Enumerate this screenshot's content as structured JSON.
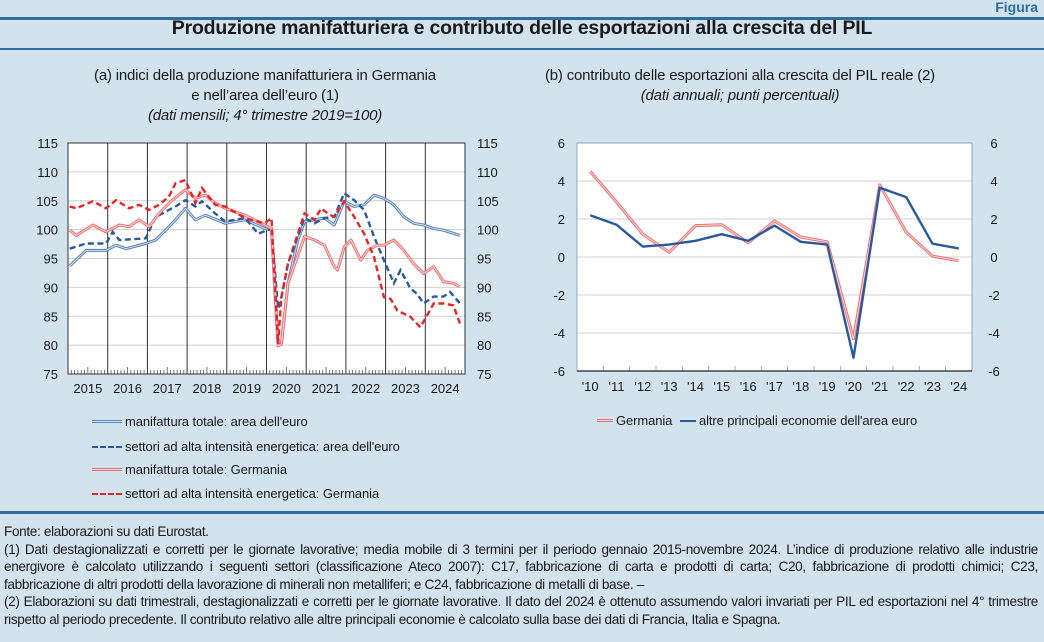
{
  "figure_label": "Figura",
  "title": "Produzione manifatturiera e contributo delle esportazioni alla crescita del PIL",
  "colors": {
    "background": "#d3e3ee",
    "rule": "#2f6e9c",
    "blue_light": "#5b86b8",
    "blue_dark": "#2a5a9c",
    "red_light": "#ef6f72",
    "red": "#e8242b"
  },
  "chart_data": [
    {
      "type": "line",
      "title": "(a) indici della produzione manifatturiera in Germania e nell’area dell’euro (1)",
      "title_line1": "(a) indici della produzione manifatturiera in Germania",
      "title_line2": "e nell’area dell’euro (1)",
      "subtitle": "(dati mensili; 4° trimestre 2019=100)",
      "ylim": [
        75,
        115
      ],
      "yticks": [
        "75",
        "80",
        "85",
        "90",
        "95",
        "100",
        "105",
        "110",
        "115"
      ],
      "xlabels": [
        "2015",
        "2016",
        "2017",
        "2018",
        "2019",
        "2020",
        "2021",
        "2022",
        "2023",
        "2024"
      ],
      "x_range": [
        "2015-01",
        "2024-12"
      ],
      "grid": true,
      "dual_y_axis": true,
      "legend_position": "bottom",
      "series": [
        {
          "name": "manifattura totale: area dell'euro",
          "style": "solid",
          "color": "#5b86b8",
          "points": [
            [
              "2015-01",
              93.7
            ],
            [
              "2015-06",
              96.4
            ],
            [
              "2015-12",
              96.4
            ],
            [
              "2016-03",
              97.3
            ],
            [
              "2016-06",
              96.7
            ],
            [
              "2016-12",
              97.6
            ],
            [
              "2017-03",
              98.2
            ],
            [
              "2017-06",
              99.9
            ],
            [
              "2017-09",
              101.7
            ],
            [
              "2017-12",
              103.7
            ],
            [
              "2018-03",
              101.7
            ],
            [
              "2018-06",
              102.5
            ],
            [
              "2018-12",
              101.1
            ],
            [
              "2019-06",
              101.7
            ],
            [
              "2019-12",
              100.2
            ],
            [
              "2020-02",
              99.9
            ],
            [
              "2020-04",
              79.9
            ],
            [
              "2020-05",
              80.2
            ],
            [
              "2020-07",
              90.7
            ],
            [
              "2020-10",
              98.2
            ],
            [
              "2020-12",
              101.4
            ],
            [
              "2021-06",
              102
            ],
            [
              "2021-09",
              100.8
            ],
            [
              "2021-12",
              104.9
            ],
            [
              "2022-03",
              104
            ],
            [
              "2022-06",
              104.3
            ],
            [
              "2022-09",
              106
            ],
            [
              "2022-12",
              105.4
            ],
            [
              "2023-03",
              104.3
            ],
            [
              "2023-06",
              102.2
            ],
            [
              "2023-09",
              101.1
            ],
            [
              "2023-12",
              100.8
            ],
            [
              "2024-03",
              100.2
            ],
            [
              "2024-06",
              99.9
            ],
            [
              "2024-11",
              99
            ]
          ]
        },
        {
          "name": "settori ad alta intensità energetica: area dell'euro",
          "style": "dashed",
          "color": "#2a5a9c",
          "points": [
            [
              "2015-01",
              96.7
            ],
            [
              "2015-06",
              97.6
            ],
            [
              "2015-12",
              97.6
            ],
            [
              "2016-02",
              99.6
            ],
            [
              "2016-04",
              98.2
            ],
            [
              "2016-12",
              98.5
            ],
            [
              "2017-03",
              102.2
            ],
            [
              "2017-06",
              103.1
            ],
            [
              "2017-09",
              104
            ],
            [
              "2017-12",
              105.1
            ],
            [
              "2018-03",
              104
            ],
            [
              "2018-05",
              104.9
            ],
            [
              "2018-09",
              102.8
            ],
            [
              "2018-12",
              101.4
            ],
            [
              "2019-06",
              102
            ],
            [
              "2019-10",
              99.3
            ],
            [
              "2020-02",
              100.2
            ],
            [
              "2020-04",
              86.3
            ],
            [
              "2020-05",
              88.3
            ],
            [
              "2020-07",
              94.1
            ],
            [
              "2020-12",
              102
            ],
            [
              "2021-03",
              101.1
            ],
            [
              "2021-06",
              102
            ],
            [
              "2021-09",
              102.2
            ],
            [
              "2021-12",
              106.3
            ],
            [
              "2022-03",
              105.1
            ],
            [
              "2022-06",
              103.4
            ],
            [
              "2022-09",
              98.8
            ],
            [
              "2022-12",
              94.7
            ],
            [
              "2023-03",
              90.7
            ],
            [
              "2023-05",
              93
            ],
            [
              "2023-08",
              89.8
            ],
            [
              "2023-10",
              88.9
            ],
            [
              "2023-12",
              87.2
            ],
            [
              "2024-03",
              88.4
            ],
            [
              "2024-06",
              88.4
            ],
            [
              "2024-08",
              89.2
            ],
            [
              "2024-11",
              87.2
            ]
          ]
        },
        {
          "name": "manifattura totale: Germania",
          "style": "solid",
          "color": "#ef6f72",
          "points": [
            [
              "2015-01",
              99.9
            ],
            [
              "2015-03",
              99
            ],
            [
              "2015-08",
              100.8
            ],
            [
              "2015-12",
              99.6
            ],
            [
              "2016-04",
              100.8
            ],
            [
              "2016-07",
              100.5
            ],
            [
              "2016-10",
              101.7
            ],
            [
              "2017-01",
              100.5
            ],
            [
              "2017-04",
              102.8
            ],
            [
              "2017-08",
              105.1
            ],
            [
              "2017-12",
              106.9
            ],
            [
              "2018-03",
              105.4
            ],
            [
              "2018-06",
              106
            ],
            [
              "2018-09",
              104.6
            ],
            [
              "2018-12",
              103.7
            ],
            [
              "2019-06",
              102.5
            ],
            [
              "2019-12",
              100.8
            ],
            [
              "2020-02",
              100.2
            ],
            [
              "2020-04",
              79.9
            ],
            [
              "2020-05",
              80.2
            ],
            [
              "2020-07",
              90.7
            ],
            [
              "2020-12",
              98.8
            ],
            [
              "2021-03",
              98.2
            ],
            [
              "2021-06",
              97.3
            ],
            [
              "2021-09",
              93.6
            ],
            [
              "2021-10",
              93
            ],
            [
              "2021-12",
              97
            ],
            [
              "2022-02",
              98.2
            ],
            [
              "2022-05",
              94.7
            ],
            [
              "2022-07",
              96.4
            ],
            [
              "2022-10",
              97.3
            ],
            [
              "2022-12",
              97.3
            ],
            [
              "2023-03",
              98.2
            ],
            [
              "2023-06",
              96.4
            ],
            [
              "2023-09",
              94.1
            ],
            [
              "2023-12",
              92.4
            ],
            [
              "2024-03",
              93.6
            ],
            [
              "2024-06",
              91
            ],
            [
              "2024-09",
              90.7
            ],
            [
              "2024-11",
              90.1
            ]
          ]
        },
        {
          "name": "settori ad alta intensità energetica: Germania",
          "style": "dashed",
          "color": "#e8242b",
          "points": [
            [
              "2015-01",
              104
            ],
            [
              "2015-03",
              103.7
            ],
            [
              "2015-08",
              104.9
            ],
            [
              "2015-12",
              103.7
            ],
            [
              "2016-03",
              105.1
            ],
            [
              "2016-07",
              103.7
            ],
            [
              "2016-10",
              104.3
            ],
            [
              "2017-01",
              103.4
            ],
            [
              "2017-04",
              104.3
            ],
            [
              "2017-07",
              105.7
            ],
            [
              "2017-09",
              108
            ],
            [
              "2017-12",
              108.6
            ],
            [
              "2018-03",
              104.6
            ],
            [
              "2018-05",
              107.2
            ],
            [
              "2018-09",
              104.3
            ],
            [
              "2018-12",
              104
            ],
            [
              "2019-06",
              102
            ],
            [
              "2019-12",
              101.1
            ],
            [
              "2020-02",
              102
            ],
            [
              "2020-04",
              80.2
            ],
            [
              "2020-05",
              88.3
            ],
            [
              "2020-07",
              94.1
            ],
            [
              "2020-12",
              102.8
            ],
            [
              "2021-03",
              101.7
            ],
            [
              "2021-05",
              103.7
            ],
            [
              "2021-07",
              102.8
            ],
            [
              "2021-09",
              102.2
            ],
            [
              "2021-12",
              104.9
            ],
            [
              "2022-03",
              102.2
            ],
            [
              "2022-06",
              99.3
            ],
            [
              "2022-09",
              95.3
            ],
            [
              "2022-12",
              88.3
            ],
            [
              "2023-02",
              88
            ],
            [
              "2023-04",
              86
            ],
            [
              "2023-08",
              84.9
            ],
            [
              "2023-11",
              83.1
            ],
            [
              "2024-01",
              85.1
            ],
            [
              "2024-03",
              87.2
            ],
            [
              "2024-06",
              87.2
            ],
            [
              "2024-09",
              86.9
            ],
            [
              "2024-11",
              83.7
            ]
          ]
        }
      ]
    },
    {
      "type": "line",
      "title": "(b) contributo delle esportazioni alla crescita del PIL reale (2)",
      "subtitle": "(dati annuali; punti percentuali)",
      "ylim": [
        -6,
        6
      ],
      "yticks": [
        "-6",
        "-4",
        "-2",
        "0",
        "2",
        "4",
        "6"
      ],
      "categories": [
        "'10",
        "'11",
        "'12",
        "'13",
        "'14",
        "'15",
        "'16",
        "'17",
        "'18",
        "'19",
        "'20",
        "'21",
        "'22",
        "'23",
        "'24"
      ],
      "grid": true,
      "dual_y_axis": true,
      "legend_position": "bottom",
      "series": [
        {
          "name": "Germania",
          "style": "solid",
          "color": "#ef6f72",
          "values": [
            4.5,
            2.9,
            1.2,
            0.25,
            1.65,
            1.7,
            0.75,
            1.9,
            1.05,
            0.8,
            -4.3,
            3.8,
            1.3,
            0.05,
            -0.2
          ]
        },
        {
          "name": "altre principali economie dell'area euro",
          "style": "solid",
          "color": "#2a5a9c",
          "values": [
            2.2,
            1.7,
            0.55,
            0.65,
            0.85,
            1.2,
            0.85,
            1.65,
            0.8,
            0.65,
            -5.3,
            3.65,
            3.15,
            0.7,
            0.45
          ]
        }
      ]
    }
  ],
  "notes": {
    "source": "Fonte: elaborazioni su dati Eurostat.",
    "note1": "(1) Dati destagionalizzati e corretti per le giornate lavorative; media mobile di 3 termini per il periodo gennaio 2015-novembre 2024. L’indice di produzione relativo alle industrie energivore è calcolato utilizzando i seguenti settori (classificazione Ateco 2007): C17, fabbricazione di carta e prodotti di carta; C20, fabbricazione di prodotti chimici; C23, fabbricazione di altri prodotti della lavorazione di minerali non metalliferi; e C24, fabbricazione di metalli di base. –",
    "note2": "(2) Elaborazioni su dati trimestrali, destagionalizzati e corretti per le giornate lavorative. Il dato del 2024 è ottenuto assumendo valori invariati per PIL ed esportazioni nel 4° trimestre rispetto al periodo precedente. Il contributo relativo alle altre principali economie è calcolato sulla base dei dati di Francia, Italia e Spagna."
  }
}
